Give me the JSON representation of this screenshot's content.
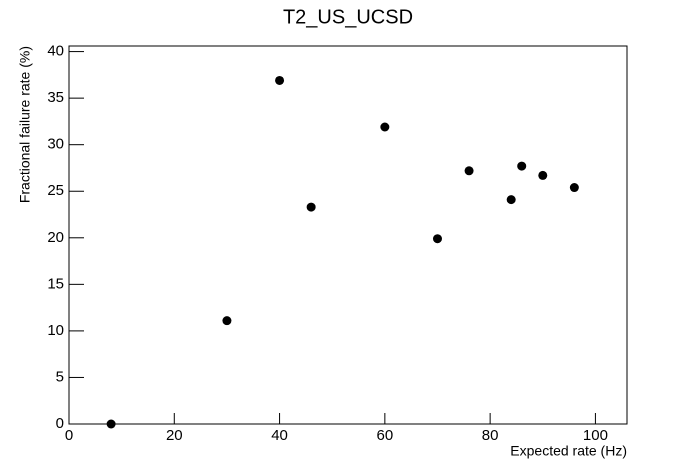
{
  "chart_data": {
    "type": "scatter",
    "title": "T2_US_UCSD",
    "x_label": "Expected rate (Hz)",
    "y_label": "Fractional failure rate (%)",
    "x": [
      8,
      30,
      40,
      46,
      60,
      70,
      76,
      84,
      86,
      90,
      96
    ],
    "values": [
      0,
      11.1,
      36.9,
      23.3,
      31.9,
      19.9,
      27.2,
      24.1,
      27.7,
      26.7,
      25.4
    ],
    "color": "#000000",
    "xlim": [
      0,
      106
    ],
    "xticks": [
      0,
      20,
      40,
      60,
      80,
      100
    ],
    "ylim": [
      0,
      40.6
    ],
    "yticks": [
      0,
      5,
      10,
      15,
      20,
      25,
      30,
      35,
      40
    ]
  }
}
